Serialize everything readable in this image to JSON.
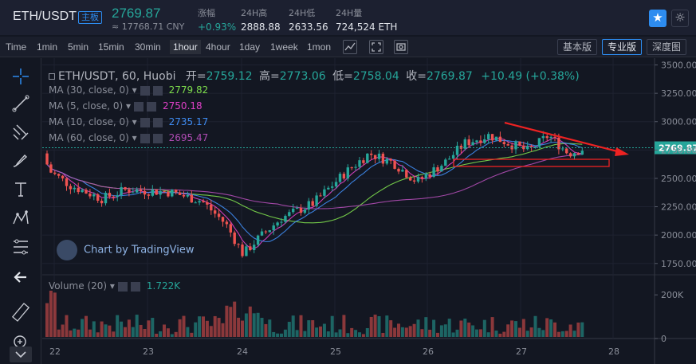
{
  "header": {
    "pair": "ETH/USDT",
    "badge": "主板",
    "last_price": "2769.87",
    "cny_price": "≈ 17768.71 CNY",
    "stats": [
      {
        "label": "涨幅",
        "value": "+0.93%",
        "up": true
      },
      {
        "label": "24H高",
        "value": "2888.88"
      },
      {
        "label": "24H低",
        "value": "2633.56"
      },
      {
        "label": "24H量",
        "value": "724,524 ETH"
      }
    ],
    "star_icon": "★",
    "theme_icon": "☼"
  },
  "toolbar": {
    "timeframes": [
      "Time",
      "1min",
      "5min",
      "15min",
      "30min",
      "1hour",
      "4hour",
      "1day",
      "1week",
      "1mon"
    ],
    "active_timeframe": "1hour",
    "versions": [
      "基本版",
      "专业版",
      "深度图"
    ],
    "active_version": "专业版"
  },
  "legend": {
    "symbol": "ETH/USDT, 60, Huobi",
    "open_label": "开=",
    "open": "2759.12",
    "high_label": "高=",
    "high": "2773.06",
    "low_label": "低=",
    "low": "2758.04",
    "close_label": "收=",
    "close": "2769.87",
    "change": "+10.49 (+0.38%)",
    "mas": [
      {
        "label": "MA (30, close, 0)",
        "value": "2779.82",
        "color": "#7ddc4c"
      },
      {
        "label": "MA (5, close, 0)",
        "value": "2750.18",
        "color": "#e040c8"
      },
      {
        "label": "MA (10, close, 0)",
        "value": "2735.17",
        "color": "#3f8cf2"
      },
      {
        "label": "MA (60, close, 0)",
        "value": "2695.47",
        "color": "#b04cb4"
      }
    ],
    "volume_label": "Volume (20)",
    "volume_value": "1.722K"
  },
  "watermark": "Chart by TradingView",
  "chart_data": {
    "type": "candlestick",
    "y_axis_price": [
      "3500.00",
      "3250.00",
      "3000.00",
      "2750.00",
      "2500.00",
      "2250.00",
      "2000.00",
      "1750.00"
    ],
    "price_ylim": [
      1650,
      3560
    ],
    "y_axis_volume": [
      "200K",
      "0"
    ],
    "volume_ylim": [
      0,
      270
    ],
    "x_ticks": [
      "22",
      "23",
      "24",
      "25",
      "26",
      "27",
      "28"
    ],
    "current_price_label": "2769.87",
    "current_price": 2769.87,
    "colors": {
      "up": "#26a69a",
      "down": "#ef5350"
    }
  }
}
